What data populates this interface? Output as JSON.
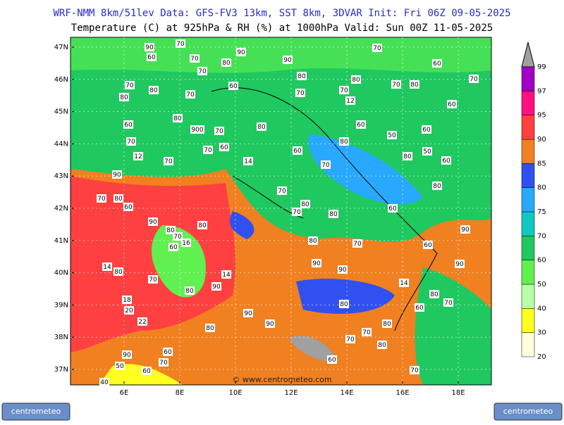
{
  "header": {
    "line1": "WRF-NMM 8km/51lev  Data: GFS-FV3 13km, SST 8km, 3DVAR  Init: Fri 06Z 09-05-2025",
    "line2": "Temperature (C) at 925hPa & RH (%) at 1000hPa  Valid: Sun 00Z 11-05-2025"
  },
  "map": {
    "latitude_ticks": [
      {
        "value": 47,
        "label": "47N"
      },
      {
        "value": 46,
        "label": "46N"
      },
      {
        "value": 45,
        "label": "45N"
      },
      {
        "value": 44,
        "label": "44N"
      },
      {
        "value": 43,
        "label": "43N"
      },
      {
        "value": 42,
        "label": "42N"
      },
      {
        "value": 41,
        "label": "41N"
      },
      {
        "value": 40,
        "label": "40N"
      },
      {
        "value": 39,
        "label": "39N"
      },
      {
        "value": 38,
        "label": "38N"
      },
      {
        "value": 37,
        "label": "37N"
      }
    ],
    "longitude_ticks": [
      {
        "value": 6,
        "label": "6E"
      },
      {
        "value": 8,
        "label": "8E"
      },
      {
        "value": 10,
        "label": "10E"
      },
      {
        "value": 12,
        "label": "12E"
      },
      {
        "value": 14,
        "label": "14E"
      },
      {
        "value": 16,
        "label": "16E"
      },
      {
        "value": 18,
        "label": "18E"
      }
    ],
    "watermark": "© www.centrometeo.com",
    "contour_labels": [
      "90",
      "70",
      "90",
      "60",
      "70",
      "80",
      "90",
      "70",
      "70",
      "70",
      "80",
      "60",
      "80",
      "80",
      "80",
      "70",
      "70",
      "70",
      "70",
      "80",
      "12",
      "60",
      "80",
      "900",
      "70",
      "80",
      "60",
      "60",
      "70",
      "60",
      "70",
      "70",
      "60",
      "60",
      "80",
      "60",
      "50",
      "12",
      "70",
      "14",
      "70",
      "80",
      "50",
      "60",
      "90",
      "70",
      "80",
      "70",
      "80",
      "60",
      "80",
      "80",
      "70",
      "60",
      "90",
      "80",
      "80",
      "70",
      "90",
      "60",
      "16",
      "80",
      "70",
      "60",
      "90",
      "90",
      "14",
      "80",
      "14",
      "90",
      "70",
      "90",
      "14",
      "80",
      "80",
      "70",
      "18",
      "80",
      "60",
      "20",
      "90",
      "22",
      "90",
      "80",
      "80",
      "70",
      "70",
      "80",
      "60",
      "90",
      "70",
      "60",
      "50",
      "60",
      "70",
      "40"
    ]
  },
  "colorbar": {
    "levels": [
      {
        "value": 20,
        "color": "#ffffe0"
      },
      {
        "value": 30,
        "color": "#ffff20"
      },
      {
        "value": 40,
        "color": "#b8ffa8"
      },
      {
        "value": 50,
        "color": "#60f050"
      },
      {
        "value": 60,
        "color": "#20c860"
      },
      {
        "value": 70,
        "color": "#10c8c0"
      },
      {
        "value": 75,
        "color": "#28a8ff"
      },
      {
        "value": 80,
        "color": "#3050f0"
      },
      {
        "value": 85,
        "color": "#f08020"
      },
      {
        "value": 90,
        "color": "#ff4040"
      },
      {
        "value": 95,
        "color": "#ff1080"
      },
      {
        "value": 97,
        "color": "#a000c8"
      },
      {
        "value": 99,
        "color": "#a0a0a0"
      }
    ]
  },
  "footer": {
    "logo_left": "centrometeo",
    "logo_right": "centrometeo"
  }
}
